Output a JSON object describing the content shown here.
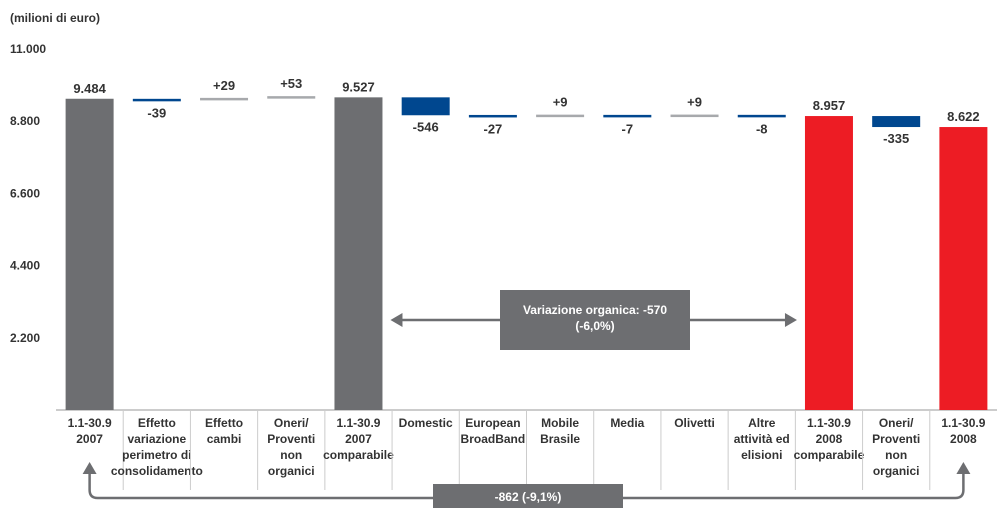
{
  "chart_data": {
    "type": "waterfall",
    "unit": "(milioni di euro)",
    "ylim": [
      0,
      11000
    ],
    "y_ticks": [
      "2.200",
      "4.400",
      "6.600",
      "8.800",
      "11.000"
    ],
    "y_tick_values": [
      2200,
      4400,
      6600,
      8800,
      11000
    ],
    "colors": {
      "total_grey": "#6d6e71",
      "total_red": "#ed1c24",
      "negative": "#00478f",
      "neutral": "#a7a9ac",
      "callout": "#6d6e71",
      "axis": "#999999"
    },
    "bars": [
      {
        "label": [
          "1.1-30.9",
          "2007"
        ],
        "kind": "total",
        "color": "total_grey",
        "start": 0,
        "end": 9484,
        "value_label": "9.484"
      },
      {
        "label": [
          "Effetto",
          "variazione",
          "perimetro di",
          "consolidamento"
        ],
        "kind": "delta",
        "color": "negative",
        "start": 9484,
        "end": 9445,
        "value_label": "-39"
      },
      {
        "label": [
          "Effetto",
          "cambi"
        ],
        "kind": "delta",
        "color": "neutral",
        "start": 9445,
        "end": 9474,
        "value_label": "+29"
      },
      {
        "label": [
          "Oneri/",
          "Proventi",
          "non",
          "organici"
        ],
        "kind": "delta",
        "color": "neutral",
        "start": 9474,
        "end": 9527,
        "value_label": "+53"
      },
      {
        "label": [
          "1.1-30.9",
          "2007",
          "comparabile"
        ],
        "kind": "total",
        "color": "total_grey",
        "start": 0,
        "end": 9527,
        "value_label": "9.527"
      },
      {
        "label": [
          "Domestic"
        ],
        "kind": "delta",
        "color": "negative",
        "start": 9527,
        "end": 8981,
        "value_label": "-546"
      },
      {
        "label": [
          "European",
          "BroadBand"
        ],
        "kind": "delta",
        "color": "negative",
        "start": 8981,
        "end": 8954,
        "value_label": "-27"
      },
      {
        "label": [
          "Mobile",
          "Brasile"
        ],
        "kind": "delta",
        "color": "neutral",
        "start": 8954,
        "end": 8963,
        "value_label": "+9"
      },
      {
        "label": [
          "Media"
        ],
        "kind": "delta",
        "color": "negative",
        "start": 8963,
        "end": 8956,
        "value_label": "-7"
      },
      {
        "label": [
          "Olivetti"
        ],
        "kind": "delta",
        "color": "neutral",
        "start": 8956,
        "end": 8965,
        "value_label": "+9"
      },
      {
        "label": [
          "Altre",
          "attività ed",
          "elisioni"
        ],
        "kind": "delta",
        "color": "negative",
        "start": 8965,
        "end": 8957,
        "value_label": "-8"
      },
      {
        "label": [
          "1.1-30.9",
          "2008",
          "comparabile"
        ],
        "kind": "total",
        "color": "total_red",
        "start": 0,
        "end": 8957,
        "value_label": "8.957"
      },
      {
        "label": [
          "Oneri/",
          "Proventi",
          "non",
          "organici"
        ],
        "kind": "delta",
        "color": "negative",
        "start": 8957,
        "end": 8622,
        "value_label": "-335"
      },
      {
        "label": [
          "1.1-30.9",
          "2008"
        ],
        "kind": "total",
        "color": "total_red",
        "start": 0,
        "end": 8622,
        "value_label": "8.622"
      }
    ],
    "annotations": {
      "organic_variation": [
        "Variazione organica: -570",
        "(-6,0%)"
      ],
      "total_variation": "-862 (-9,1%)"
    }
  }
}
